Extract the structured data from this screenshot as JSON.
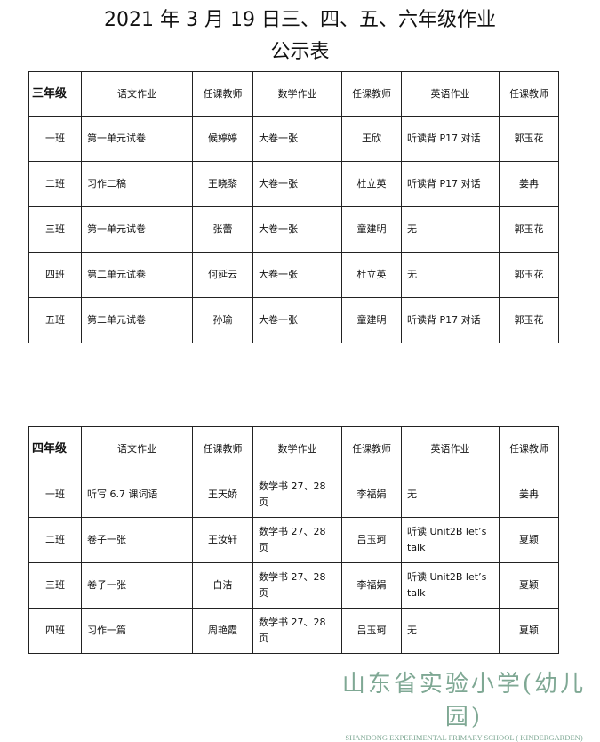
{
  "title": {
    "line1": "2021 年 3 月 19 日三、四、五、六年级作业",
    "line2": "公示表"
  },
  "grade3": {
    "header": [
      "三年级",
      "语文作业",
      "任课教师",
      "数学作业",
      "任课教师",
      "英语作业",
      "任课教师"
    ],
    "rows": [
      [
        "一班",
        "第一单元试卷",
        "候婷婷",
        "大卷一张",
        "王欣",
        "听读背 P17 对话",
        "郭玉花"
      ],
      [
        "二班",
        "习作二稿",
        "王晓黎",
        "大卷一张",
        "杜立英",
        "听读背 P17 对话",
        "姜冉"
      ],
      [
        "三班",
        "第一单元试卷",
        "张蕾",
        "大卷一张",
        "童建明",
        "无",
        "郭玉花"
      ],
      [
        "四班",
        "第二单元试卷",
        "何延云",
        "大卷一张",
        "杜立英",
        "无",
        "郭玉花"
      ],
      [
        "五班",
        "第二单元试卷",
        "孙瑜",
        "大卷一张",
        "童建明",
        "听读背 P17 对话",
        "郭玉花"
      ]
    ]
  },
  "grade4": {
    "header": [
      "四年级",
      "语文作业",
      "任课教师",
      "数学作业",
      "任课教师",
      "英语作业",
      "任课教师"
    ],
    "rows": [
      [
        "一班",
        "听写 6.7 课词语",
        "王天娇",
        "数学书 27、28 页",
        "李福娟",
        "无",
        "姜冉"
      ],
      [
        "二班",
        "卷子一张",
        "王汝轩",
        "数学书 27、28 页",
        "吕玉珂",
        "听读 Unit2B let’s talk",
        "夏颖"
      ],
      [
        "三班",
        "卷子一张",
        "白洁",
        "数学书 27、28 页",
        "李福娟",
        "听读 Unit2B let’s talk",
        "夏颖"
      ],
      [
        "四班",
        "习作一篇",
        "周艳霞",
        "数学书 27、28 页",
        "吕玉珂",
        "无",
        "夏颖"
      ]
    ]
  },
  "logo": {
    "cn": "山东省实验小学(幼儿园)",
    "en": "SHANDONG EXPERIMENTAL PRIMARY SCHOOL ( KINDERGARDEN)",
    "color": "#7fa894"
  }
}
